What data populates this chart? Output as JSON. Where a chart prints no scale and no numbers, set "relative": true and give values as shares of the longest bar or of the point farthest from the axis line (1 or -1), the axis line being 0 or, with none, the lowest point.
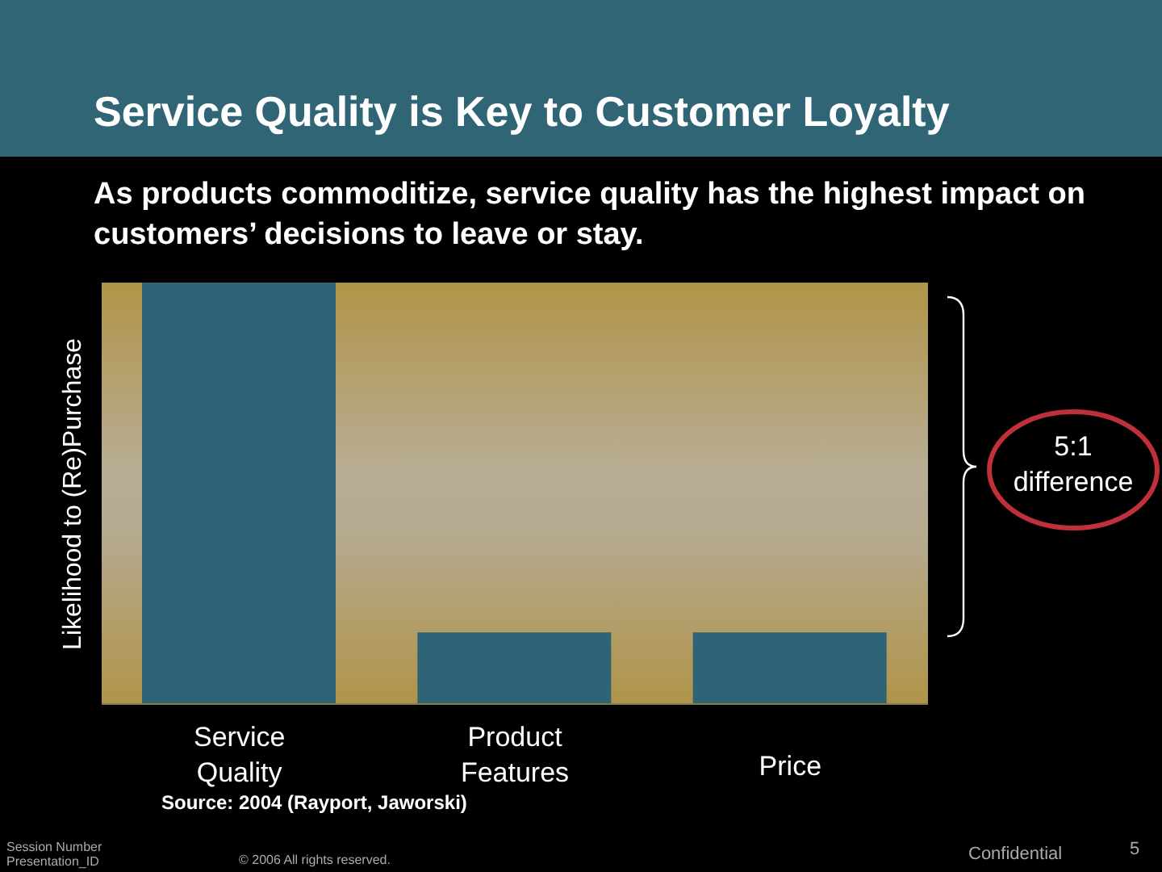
{
  "chart_data": {
    "type": "bar",
    "title": "Service Quality is Key to Customer Loyalty",
    "subtitle": "As products commoditize, service quality has the highest impact on customers’ decisions to leave or stay.",
    "ylabel": "Likelihood to (Re)Purchase",
    "categories": [
      "Service Quality",
      "Product Features",
      "Price"
    ],
    "values": [
      1,
      0.17,
      0.17
    ],
    "color": "#2e6475",
    "relative": true,
    "annotations": [
      "5:1 difference",
      "Source: 2004 (Rayport, Jaworski)",
      "Session Number Presentation_ID",
      "© 2006 All rights reserved.",
      "Confidential",
      "5"
    ]
  }
}
